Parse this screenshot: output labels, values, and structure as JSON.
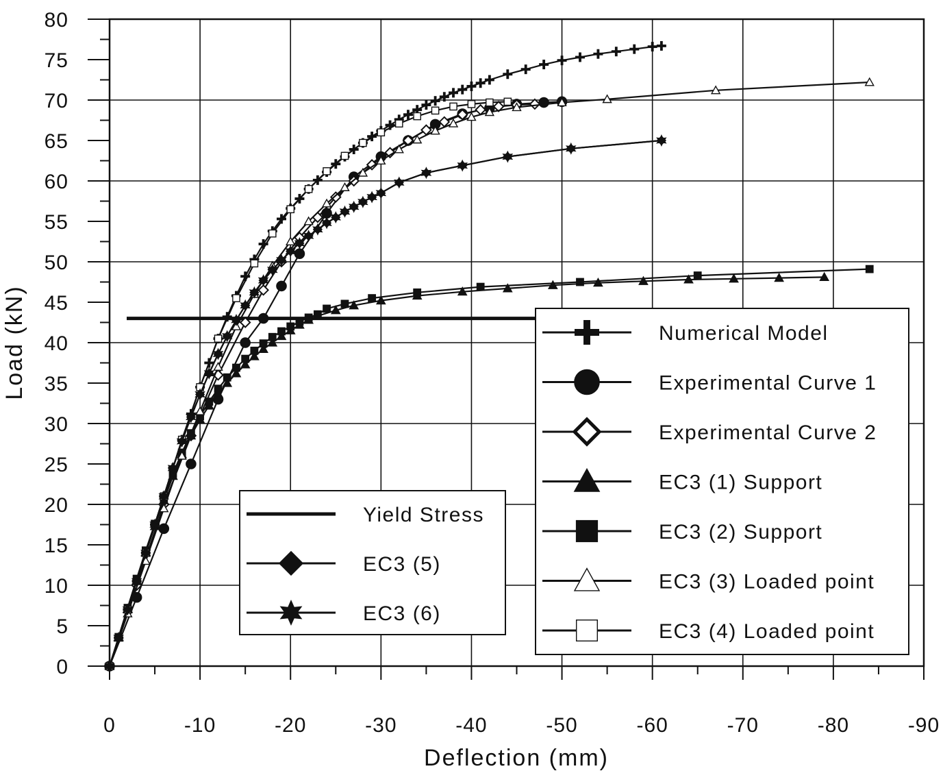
{
  "chart_data": {
    "type": "line",
    "xlabel": "Deflection (mm)",
    "ylabel": "Load (kN)",
    "xlim": [
      0,
      -90
    ],
    "ylim": [
      0,
      80
    ],
    "grid": true,
    "x_ticks": [
      0,
      -10,
      -20,
      -30,
      -40,
      -50,
      -60,
      -70,
      -80,
      -90
    ],
    "y_ticks": [
      0,
      5,
      10,
      15,
      20,
      25,
      30,
      35,
      40,
      45,
      50,
      55,
      60,
      65,
      70,
      75,
      80
    ],
    "yield_stress": 43,
    "series": [
      {
        "name": "Numerical Model",
        "marker": "plus",
        "x": [
          0,
          -1,
          -2,
          -3,
          -4,
          -5,
          -6,
          -7,
          -8,
          -9,
          -10,
          -11,
          -12,
          -13,
          -14,
          -15,
          -16,
          -17,
          -18,
          -19,
          -20,
          -21,
          -22,
          -23,
          -24,
          -25,
          -26,
          -27,
          -28,
          -29,
          -30,
          -31,
          -32,
          -33,
          -34,
          -35,
          -36,
          -37,
          -38,
          -39,
          -40,
          -41,
          -42,
          -44,
          -46,
          -48,
          -50,
          -52,
          -54,
          -56,
          -58,
          -60,
          -61
        ],
        "values": [
          0,
          3.5,
          7,
          10.5,
          14,
          17.5,
          21,
          24.5,
          28,
          31.2,
          34.5,
          37.5,
          40.5,
          43.2,
          45.8,
          48.2,
          50.3,
          52.2,
          53.8,
          55.3,
          56.6,
          57.8,
          59,
          60.1,
          61.1,
          62.1,
          63,
          63.9,
          64.7,
          65.5,
          66.2,
          66.9,
          67.6,
          68.2,
          68.8,
          69.4,
          69.9,
          70.4,
          70.9,
          71.3,
          71.7,
          72.1,
          72.5,
          73.2,
          73.8,
          74.4,
          74.9,
          75.3,
          75.7,
          76,
          76.3,
          76.6,
          76.7
        ]
      },
      {
        "name": "Experimental Curve 1",
        "marker": "circle",
        "x": [
          0,
          -3,
          -6,
          -9,
          -12,
          -15,
          -17,
          -19,
          -21,
          -24,
          -27,
          -30,
          -33,
          -36,
          -39,
          -42,
          -45,
          -48,
          -50
        ],
        "values": [
          0,
          8.5,
          17,
          25,
          33,
          40,
          43,
          47,
          51,
          56,
          60.5,
          63,
          65,
          67,
          68.3,
          69,
          69.5,
          69.7,
          69.8
        ]
      },
      {
        "name": "Experimental Curve 2",
        "marker": "open-diamond",
        "x": [
          0,
          -3,
          -6,
          -9,
          -12,
          -15,
          -17,
          -19,
          -21,
          -23,
          -25,
          -27,
          -29,
          -31,
          -33,
          -35,
          -37,
          -39,
          -41,
          -43,
          -45,
          -47
        ],
        "values": [
          0,
          10,
          20,
          28.5,
          36,
          42.5,
          46.5,
          50,
          53,
          55.5,
          58,
          60,
          62,
          63.5,
          65,
          66.3,
          67.3,
          68.2,
          68.8,
          69.2,
          69.4,
          69.5
        ]
      },
      {
        "name": "EC3 (1) Support",
        "marker": "triangle",
        "x": [
          0,
          -1,
          -2,
          -3,
          -4,
          -5,
          -6,
          -7,
          -8,
          -9,
          -10,
          -11,
          -12,
          -13,
          -14,
          -15,
          -16,
          -17,
          -18,
          -19,
          -20,
          -21,
          -22,
          -23,
          -25,
          -27,
          -30,
          -34,
          -39,
          -44,
          -49,
          -54,
          -59,
          -64,
          -69,
          -74,
          -79
        ],
        "values": [
          0,
          3.5,
          7,
          10.5,
          14,
          17.3,
          20.5,
          23.5,
          26.2,
          28.5,
          30.5,
          32.2,
          33.7,
          35,
          36.2,
          37.3,
          38.3,
          39.2,
          40,
          40.8,
          41.5,
          42.2,
          42.8,
          43.3,
          44,
          44.6,
          45.2,
          45.8,
          46.3,
          46.7,
          47.1,
          47.4,
          47.6,
          47.8,
          47.9,
          48,
          48.1
        ]
      },
      {
        "name": "EC3 (2) Support",
        "marker": "square",
        "x": [
          0,
          -1,
          -2,
          -3,
          -4,
          -5,
          -6,
          -7,
          -8,
          -9,
          -10,
          -11,
          -12,
          -13,
          -14,
          -15,
          -16,
          -17,
          -18,
          -19,
          -20,
          -21,
          -22,
          -23,
          -24,
          -26,
          -29,
          -34,
          -41,
          -52,
          -65,
          -84
        ],
        "values": [
          0,
          3.6,
          7.2,
          10.8,
          14.3,
          17.6,
          20.8,
          23.8,
          26.4,
          28.8,
          30.9,
          32.7,
          34.3,
          35.7,
          36.9,
          38,
          39,
          39.9,
          40.7,
          41.4,
          42,
          42.6,
          43.1,
          43.5,
          44.2,
          44.8,
          45.5,
          46.2,
          46.9,
          47.5,
          48.3,
          49.1
        ]
      },
      {
        "name": "EC3 (3) Loaded point",
        "marker": "open-triangle",
        "x": [
          0,
          -2,
          -4,
          -6,
          -8,
          -10,
          -12,
          -14,
          -16,
          -18,
          -20,
          -22,
          -24,
          -26,
          -28,
          -30,
          -32,
          -34,
          -36,
          -38,
          -40,
          -42,
          -45,
          -50,
          -55,
          -67,
          -84
        ],
        "values": [
          0,
          6.5,
          13,
          19.5,
          26,
          31.5,
          37,
          42,
          46,
          49.5,
          52.5,
          55,
          57.2,
          59.2,
          61,
          62.5,
          63.9,
          65.1,
          66.2,
          67.1,
          67.9,
          68.5,
          69.1,
          69.7,
          70.1,
          71.2,
          72.2
        ]
      },
      {
        "name": "EC3 (4) Loaded point",
        "marker": "open-square",
        "x": [
          0,
          -2,
          -4,
          -6,
          -8,
          -10,
          -12,
          -14,
          -16,
          -18,
          -20,
          -22,
          -24,
          -26,
          -28,
          -30,
          -32,
          -34,
          -36,
          -38,
          -40,
          -42,
          -44
        ],
        "values": [
          0,
          7,
          14,
          21,
          28,
          34.5,
          40.5,
          45.5,
          49.8,
          53.5,
          56.5,
          59,
          61.2,
          63.1,
          64.7,
          66,
          67.1,
          68,
          68.7,
          69.2,
          69.5,
          69.7,
          69.8
        ]
      },
      {
        "name": "EC3 (5)",
        "marker": "diamond",
        "x": [
          0,
          -1,
          -2,
          -3,
          -4,
          -5,
          -6,
          -7,
          -8,
          -9,
          -10,
          -11,
          -12,
          -13,
          -14,
          -15,
          -16,
          -17,
          -18,
          -19,
          -20,
          -21,
          -22,
          -23,
          -24,
          -25,
          -26,
          -27,
          -28,
          -29,
          -30,
          -32,
          -35,
          -39,
          -44,
          -51,
          -61
        ],
        "values": [
          0,
          3.5,
          7,
          10.5,
          14,
          17.5,
          21,
          24.5,
          27.8,
          30.8,
          33.6,
          36.2,
          38.6,
          40.8,
          42.8,
          44.6,
          46.2,
          47.7,
          49,
          50.2,
          51.3,
          52.3,
          53.2,
          54,
          54.8,
          55.5,
          56.2,
          56.8,
          57.4,
          58,
          58.5,
          59.8,
          61,
          61.9,
          63,
          64,
          65
        ]
      },
      {
        "name": "EC3 (6)",
        "marker": "star",
        "x": [
          0,
          -1,
          -2,
          -3,
          -4,
          -5,
          -6,
          -7,
          -8,
          -9,
          -10,
          -11,
          -12,
          -13,
          -14,
          -15,
          -16,
          -17,
          -18,
          -19,
          -20,
          -21,
          -22,
          -23,
          -24,
          -25,
          -26,
          -27,
          -28,
          -29,
          -30,
          -32,
          -35,
          -39,
          -44,
          -51,
          -61
        ],
        "values": [
          0,
          3.5,
          7,
          10.5,
          14,
          17.5,
          21,
          24.5,
          27.8,
          30.8,
          33.6,
          36.2,
          38.6,
          40.8,
          42.8,
          44.6,
          46.2,
          47.7,
          49,
          50.2,
          51.3,
          52.3,
          53.2,
          54,
          54.8,
          55.5,
          56.2,
          56.8,
          57.4,
          58,
          58.5,
          59.8,
          61,
          61.9,
          63,
          64,
          65
        ]
      }
    ],
    "legend_left": {
      "placement": "bottom-left",
      "items": [
        {
          "label": "Yield Stress",
          "marker": "none",
          "thick": true
        },
        {
          "label": "EC3 (5)",
          "marker": "diamond"
        },
        {
          "label": "EC3 (6)",
          "marker": "star"
        }
      ]
    },
    "legend_right": {
      "placement": "bottom-right",
      "items": [
        {
          "label": "Numerical Model",
          "marker": "plus"
        },
        {
          "label": "Experimental Curve 1",
          "marker": "circle"
        },
        {
          "label": "Experimental Curve 2",
          "marker": "open-diamond"
        },
        {
          "label": "EC3 (1) Support",
          "marker": "triangle"
        },
        {
          "label": "EC3 (2) Support",
          "marker": "square"
        },
        {
          "label": "EC3 (3) Loaded point",
          "marker": "open-triangle"
        },
        {
          "label": "EC3 (4) Loaded point",
          "marker": "open-square"
        }
      ]
    }
  }
}
